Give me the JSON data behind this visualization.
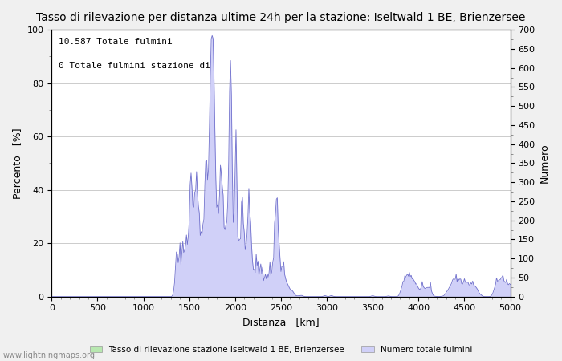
{
  "title": "Tasso di rilevazione per distanza ultime 24h per la stazione: Iseltwald 1 BE, Brienzersee",
  "xlabel": "Distanza   [km]",
  "ylabel_left": "Percento   [%]",
  "ylabel_right": "Numero",
  "annotation_line1": "10.587 Totale fulmini",
  "annotation_line2": "0 Totale fulmini stazione di",
  "xlim": [
    0,
    5000
  ],
  "ylim_left": [
    0,
    100
  ],
  "ylim_right": [
    0,
    700
  ],
  "xticks": [
    0,
    500,
    1000,
    1500,
    2000,
    2500,
    3000,
    3500,
    4000,
    4500,
    5000
  ],
  "yticks_left": [
    0,
    20,
    40,
    60,
    80,
    100
  ],
  "yticks_right": [
    0,
    50,
    100,
    150,
    200,
    250,
    300,
    350,
    400,
    450,
    500,
    550,
    600,
    650,
    700
  ],
  "legend_label1": "Tasso di rilevazione stazione Iseltwald 1 BE, Brienzersee",
  "legend_label2": "Numero totale fulmini",
  "fill_color_green": "#b8e8b0",
  "fill_color_blue": "#d0d0f8",
  "line_color": "#7070cc",
  "watermark": "www.lightningmaps.org",
  "background_color": "#f0f0f0",
  "plot_bg_color": "#ffffff",
  "title_fontsize": 10,
  "axis_fontsize": 9,
  "tick_fontsize": 8,
  "annotation_fontsize": 8
}
